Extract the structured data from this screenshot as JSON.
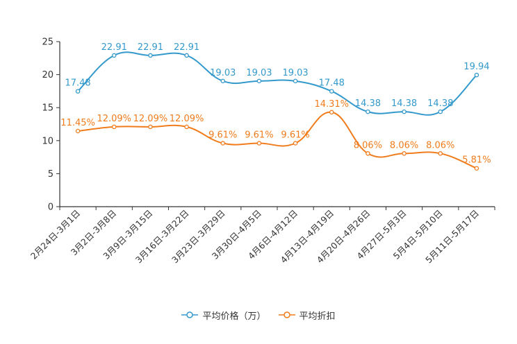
{
  "chart_data": {
    "type": "line",
    "title": "",
    "xlabel": "",
    "ylabel": "",
    "ylim": [
      0,
      25
    ],
    "yticks": [
      0,
      5,
      10,
      15,
      20,
      25
    ],
    "grid": false,
    "legend_position": "bottom-center",
    "categories": [
      "2月24日-3月1日",
      "3月2日-3月8日",
      "3月9日-3月15日",
      "3月16日-3月22日",
      "3月23日-3月29日",
      "3月30日-4月5日",
      "4月6日-4月12日",
      "4月13日-4月19日",
      "4月20日-4月26日",
      "4月27日-5月3日",
      "5月4日-5月10日",
      "5月11日-5月17日"
    ],
    "series": [
      {
        "name": "平均价格（万）",
        "color": "#3399cc",
        "values": [
          17.48,
          22.91,
          22.91,
          22.91,
          19.03,
          19.03,
          19.03,
          17.48,
          14.38,
          14.38,
          14.38,
          19.94
        ],
        "labels": [
          "17.48",
          "22.91",
          "22.91",
          "22.91",
          "19.03",
          "19.03",
          "19.03",
          "17.48",
          "14.38",
          "14.38",
          "14.38",
          "19.94"
        ]
      },
      {
        "name": "平均折扣",
        "color": "#f07c1c",
        "values": [
          11.45,
          12.09,
          12.09,
          12.09,
          9.61,
          9.61,
          9.61,
          14.31,
          8.06,
          8.06,
          8.06,
          5.81
        ],
        "labels": [
          "11.45%",
          "12.09%",
          "12.09%",
          "12.09%",
          "9.61%",
          "9.61%",
          "9.61%",
          "14.31%",
          "8.06%",
          "8.06%",
          "8.06%",
          "5.81%"
        ]
      }
    ]
  }
}
